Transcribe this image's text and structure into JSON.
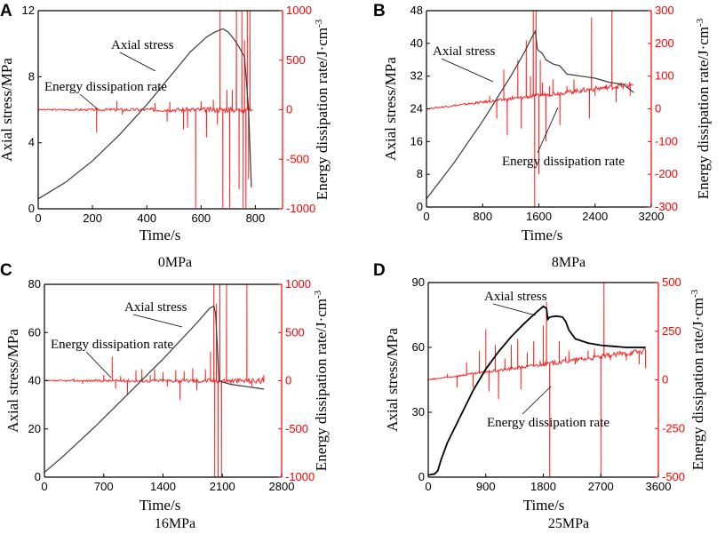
{
  "chart_data": [
    {
      "type": "line",
      "panel": "A",
      "caption": "0MPa",
      "xlabel": "Time/s",
      "ylabel": "Axial stress/MPa",
      "y2label": "Energy dissipation rate/J·cm",
      "y2label_sup": "-3",
      "xlim": [
        0,
        900
      ],
      "ylim": [
        0,
        12
      ],
      "y2lim": [
        -1000,
        1000
      ],
      "xticks": [
        0,
        200,
        400,
        600,
        800
      ],
      "yticks": [
        0,
        4,
        8,
        12
      ],
      "y2ticks": [
        -1000,
        -500,
        0,
        500,
        1000
      ],
      "series": [
        {
          "name": "Axial stress",
          "axis": "left",
          "color": "#3a3a3a",
          "x": [
            0,
            100,
            200,
            300,
            400,
            500,
            560,
            620,
            650,
            680,
            700,
            720,
            740,
            760,
            775,
            785
          ],
          "y": [
            0.6,
            1.6,
            2.9,
            4.5,
            6.3,
            8.3,
            9.5,
            10.4,
            10.7,
            10.9,
            10.7,
            10.3,
            9.8,
            9.2,
            6.0,
            1.3
          ]
        },
        {
          "name": "Energy dissipation rate",
          "axis": "right",
          "color": "#ff2020",
          "baseline": 0,
          "xrange": [
            0,
            790
          ],
          "spikes": [
            [
              215,
              -230
            ],
            [
              290,
              90
            ],
            [
              310,
              -50
            ],
            [
              430,
              70
            ],
            [
              475,
              -120
            ],
            [
              485,
              80
            ],
            [
              535,
              -200
            ],
            [
              550,
              -180
            ],
            [
              580,
              -990
            ],
            [
              600,
              85
            ],
            [
              620,
              -280
            ],
            [
              645,
              100
            ],
            [
              660,
              -150
            ],
            [
              670,
              1000
            ],
            [
              680,
              -990
            ],
            [
              695,
              200
            ],
            [
              705,
              -990
            ],
            [
              715,
              200
            ],
            [
              730,
              1000
            ],
            [
              740,
              -800
            ],
            [
              750,
              1000
            ],
            [
              755,
              -990
            ],
            [
              760,
              700
            ],
            [
              765,
              -990
            ],
            [
              770,
              1000
            ],
            [
              775,
              -700
            ],
            [
              780,
              1000
            ]
          ]
        }
      ],
      "annotations": [
        {
          "text": "Axial stress",
          "target": "Axial stress"
        },
        {
          "text": "Energy dissipation rate",
          "target": "Energy dissipation rate"
        }
      ]
    },
    {
      "type": "line",
      "panel": "B",
      "caption": "8MPa",
      "xlabel": "Time/s",
      "ylabel": "Axial stress/MPa",
      "y2label": "Energy dissipation rate/J·cm",
      "y2label_sup": "-3",
      "xlim": [
        0,
        3200
      ],
      "ylim": [
        0,
        48
      ],
      "y2lim": [
        -300,
        300
      ],
      "xticks": [
        0,
        800,
        1600,
        2400,
        3200
      ],
      "yticks": [
        0,
        8,
        16,
        24,
        32,
        40,
        48
      ],
      "y2ticks": [
        -300,
        -200,
        -100,
        0,
        100,
        200,
        300
      ],
      "series": [
        {
          "name": "Axial stress",
          "axis": "left",
          "color": "#3a3a3a",
          "x": [
            0,
            200,
            400,
            600,
            800,
            1000,
            1200,
            1400,
            1500,
            1550,
            1580,
            1650,
            1700,
            1800,
            1900,
            2000,
            2200,
            2400,
            2600,
            2800,
            2950
          ],
          "y": [
            2,
            6.5,
            11,
            16,
            21,
            26.5,
            32,
            38,
            41.5,
            43,
            38.5,
            37.5,
            36,
            35,
            34.5,
            32.5,
            32,
            31.5,
            30.5,
            30,
            28
          ]
        },
        {
          "name": "Energy dissipation rate",
          "axis": "right",
          "color": "#ff2020",
          "baseline": 0,
          "xrange": [
            0,
            2950
          ],
          "spikes": [
            [
              700,
              15
            ],
            [
              900,
              40
            ],
            [
              1000,
              -30
            ],
            [
              1100,
              120
            ],
            [
              1150,
              -80
            ],
            [
              1220,
              40
            ],
            [
              1300,
              150
            ],
            [
              1350,
              -60
            ],
            [
              1420,
              210
            ],
            [
              1480,
              100
            ],
            [
              1520,
              300
            ],
            [
              1540,
              -300
            ],
            [
              1560,
              300
            ],
            [
              1600,
              -200
            ],
            [
              1620,
              150
            ],
            [
              1650,
              80
            ],
            [
              1700,
              -100
            ],
            [
              1750,
              70
            ],
            [
              1800,
              90
            ],
            [
              1900,
              -50
            ],
            [
              2000,
              70
            ],
            [
              2100,
              90
            ],
            [
              2200,
              60
            ],
            [
              2320,
              -30
            ],
            [
              2350,
              280
            ],
            [
              2400,
              40
            ],
            [
              2550,
              60
            ],
            [
              2640,
              300
            ],
            [
              2700,
              20
            ],
            [
              2800,
              60
            ],
            [
              2900,
              40
            ]
          ]
        }
      ],
      "annotations": [
        {
          "text": "Axial stress",
          "target": "Axial stress"
        },
        {
          "text": "Energy dissipation rate",
          "target": "Energy dissipation rate"
        }
      ]
    },
    {
      "type": "line",
      "panel": "C",
      "caption": "16MPa",
      "xlabel": "Time/s",
      "ylabel": "Axial stress/MPa",
      "y2label": "Energy dissipation rate/J·cm",
      "y2label_sup": "-3",
      "xlim": [
        0,
        2800
      ],
      "ylim": [
        0,
        80
      ],
      "y2lim": [
        -1000,
        1000
      ],
      "xticks": [
        0,
        700,
        1400,
        2100,
        2800
      ],
      "yticks": [
        0,
        20,
        40,
        60,
        80
      ],
      "y2ticks": [
        -1000,
        -500,
        0,
        500,
        1000
      ],
      "series": [
        {
          "name": "Axial stress",
          "axis": "left",
          "color": "#3a3a3a",
          "x": [
            0,
            200,
            400,
            600,
            800,
            1000,
            1200,
            1400,
            1600,
            1800,
            1950,
            2000,
            2020,
            2040,
            2060,
            2100,
            2200,
            2300,
            2400,
            2500,
            2590
          ],
          "y": [
            2,
            8,
            14.5,
            21,
            28,
            35,
            42,
            49,
            56.5,
            64,
            70,
            71,
            68,
            55,
            40,
            39.5,
            38.5,
            38,
            37.5,
            37,
            36.5
          ]
        },
        {
          "name": "Energy dissipation rate",
          "axis": "right",
          "color": "#ff2020",
          "baseline": 0,
          "xrange": [
            0,
            2590
          ],
          "spikes": [
            [
              350,
              20
            ],
            [
              450,
              -30
            ],
            [
              700,
              60
            ],
            [
              800,
              250
            ],
            [
              840,
              -80
            ],
            [
              900,
              50
            ],
            [
              980,
              -150
            ],
            [
              1080,
              110
            ],
            [
              1150,
              120
            ],
            [
              1250,
              60
            ],
            [
              1300,
              120
            ],
            [
              1400,
              90
            ],
            [
              1450,
              -60
            ],
            [
              1550,
              110
            ],
            [
              1600,
              -200
            ],
            [
              1650,
              100
            ],
            [
              1750,
              130
            ],
            [
              1800,
              -100
            ],
            [
              1900,
              120
            ],
            [
              1960,
              300
            ],
            [
              2000,
              1000
            ],
            [
              2010,
              -1000
            ],
            [
              2030,
              800
            ],
            [
              2050,
              -1000
            ],
            [
              2070,
              1000
            ],
            [
              2090,
              -1000
            ],
            [
              2150,
              1000
            ],
            [
              2200,
              -40
            ],
            [
              2390,
              1000
            ],
            [
              2450,
              -60
            ],
            [
              2590,
              60
            ]
          ]
        }
      ],
      "annotations": [
        {
          "text": "Axial stress",
          "target": "Axial stress"
        },
        {
          "text": "Energy dissipation rate",
          "target": "Energy dissipation rate"
        }
      ]
    },
    {
      "type": "line",
      "panel": "D",
      "caption": "25MPa",
      "xlabel": "Time/s",
      "ylabel": "Axial stress/MPa",
      "y2label": "Energy dissipation rate/J·cm",
      "y2label_sup": "-3",
      "xlim": [
        0,
        3600
      ],
      "ylim": [
        0,
        90
      ],
      "y2lim": [
        -500,
        500
      ],
      "xticks": [
        0,
        900,
        1800,
        2700,
        3600
      ],
      "yticks": [
        0,
        30,
        60,
        90
      ],
      "y2ticks": [
        -500,
        -250,
        0,
        250,
        500
      ],
      "series": [
        {
          "name": "Axial stress",
          "axis": "left",
          "color": "#000000",
          "x": [
            0,
            100,
            150,
            200,
            300,
            500,
            700,
            900,
            1100,
            1300,
            1500,
            1700,
            1800,
            1850,
            1870,
            1900,
            2000,
            2100,
            2150,
            2200,
            2300,
            2500,
            2700,
            2900,
            3100,
            3300,
            3400
          ],
          "y": [
            1,
            1.5,
            3,
            8,
            16,
            28,
            40,
            50,
            58,
            65,
            71,
            76.5,
            79,
            78,
            73,
            74,
            74.5,
            74,
            72,
            68,
            64,
            62,
            61,
            60.5,
            60,
            60,
            60
          ]
        },
        {
          "name": "Energy dissipation rate",
          "axis": "right",
          "color": "#ff2020",
          "baseline": 0,
          "xrange": [
            0,
            3400
          ],
          "spikes": [
            [
              100,
              10
            ],
            [
              300,
              30
            ],
            [
              450,
              -40
            ],
            [
              600,
              90
            ],
            [
              700,
              -40
            ],
            [
              800,
              150
            ],
            [
              900,
              260
            ],
            [
              950,
              -60
            ],
            [
              1050,
              180
            ],
            [
              1100,
              -100
            ],
            [
              1200,
              110
            ],
            [
              1300,
              180
            ],
            [
              1400,
              210
            ],
            [
              1450,
              -50
            ],
            [
              1550,
              140
            ],
            [
              1650,
              200
            ],
            [
              1750,
              100
            ],
            [
              1800,
              280
            ],
            [
              1850,
              400
            ],
            [
              1900,
              -500
            ],
            [
              1950,
              100
            ],
            [
              2050,
              200
            ],
            [
              2150,
              120
            ],
            [
              2200,
              150
            ],
            [
              2300,
              80
            ],
            [
              2400,
              120
            ],
            [
              2500,
              150
            ],
            [
              2600,
              160
            ],
            [
              2700,
              -500
            ],
            [
              2750,
              500
            ],
            [
              2850,
              100
            ],
            [
              3000,
              150
            ],
            [
              3100,
              100
            ],
            [
              3200,
              140
            ],
            [
              3300,
              80
            ],
            [
              3400,
              60
            ]
          ]
        }
      ],
      "annotations": [
        {
          "text": "Axial stress",
          "target": "Axial stress"
        },
        {
          "text": "Energy dissipation rate",
          "target": "Energy dissipation rate"
        }
      ]
    }
  ]
}
